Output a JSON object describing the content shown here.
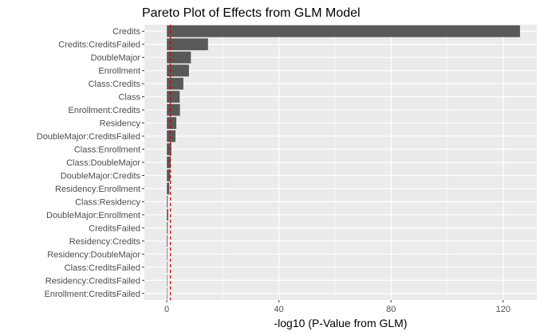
{
  "chart_data": {
    "type": "bar",
    "orientation": "horizontal",
    "title": "Pareto Plot of Effects from GLM Model",
    "xlabel": "-log10 (P-Value from GLM)",
    "ylabel": "",
    "categories": [
      "Credits",
      "Credits:CreditsFailed",
      "DoubleMajor",
      "Enrollment",
      "Class:Credits",
      "Class",
      "Enrollment:Credits",
      "Residency",
      "DoubleMajor:CreditsFailed",
      "Class:Enrollment",
      "Class:DoubleMajor",
      "DoubleMajor:Credits",
      "Residency:Enrollment",
      "Class:Residency",
      "DoubleMajor:Enrollment",
      "CreditsFailed",
      "Residency:Credits",
      "Residency:DoubleMajor",
      "Class:CreditsFailed",
      "Residency:CreditsFailed",
      "Enrollment:CreditsFailed"
    ],
    "values": [
      126.0,
      14.7,
      8.6,
      7.9,
      5.9,
      4.6,
      4.7,
      3.4,
      3.1,
      1.6,
      1.4,
      1.2,
      0.9,
      0.3,
      0.5,
      0.3,
      0.25,
      0.2,
      0.05,
      0.03,
      0.02
    ],
    "xlim": [
      -8,
      132
    ],
    "xticks": [
      0,
      40,
      80,
      120
    ],
    "reference_line": {
      "x": 1.3,
      "color": "#cc0000",
      "style": "dashed"
    },
    "grid": true,
    "bar_color": "#595959",
    "panel_background": "#ebebeb"
  }
}
